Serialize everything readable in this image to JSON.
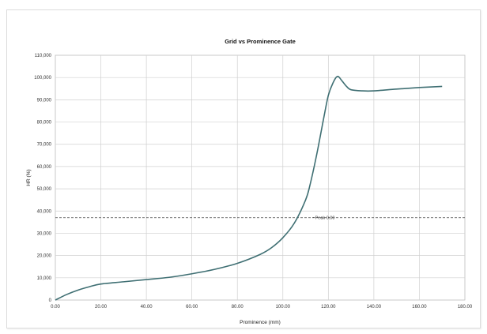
{
  "chart_data": {
    "type": "line",
    "title": "Grid vs Prominence Gate",
    "xlabel": "Prominence (mm)",
    "ylabel": "HR (%)",
    "x_ticks": [
      "0.00",
      "20.00",
      "40.00",
      "60.00",
      "80.00",
      "100.00",
      "120.00",
      "140.00",
      "160.00",
      "180.00"
    ],
    "y_ticks": [
      "0",
      "10,000",
      "20,000",
      "30,000",
      "40,000",
      "50,000",
      "60,000",
      "70,000",
      "80,000",
      "90,000",
      "100,000",
      "110,000"
    ],
    "xlim": [
      0,
      180
    ],
    "ylim": [
      0,
      110000
    ],
    "grid": true,
    "legend": "none",
    "series": [
      {
        "color": "#3f6f73",
        "x": [
          0,
          5,
          10,
          15,
          20,
          30,
          40,
          50,
          60,
          70,
          80,
          90,
          95,
          100,
          105,
          110,
          112,
          115,
          118,
          120,
          122,
          124,
          126,
          128,
          130,
          135,
          140,
          150,
          160,
          170
        ],
        "y": [
          0,
          2500,
          4500,
          6000,
          7200,
          8200,
          9200,
          10200,
          11800,
          13800,
          16500,
          20500,
          23500,
          28000,
          34500,
          45000,
          52000,
          66000,
          82000,
          92000,
          97500,
          100500,
          98500,
          96000,
          94500,
          94000,
          94000,
          94800,
          95500,
          96000
        ]
      }
    ],
    "annotations": [
      {
        "type": "hline",
        "y": 37000,
        "style": "dashed",
        "color": "#444444"
      },
      {
        "type": "text",
        "text": "~Peak 0.00",
        "x": 111,
        "y": 37000
      }
    ]
  }
}
